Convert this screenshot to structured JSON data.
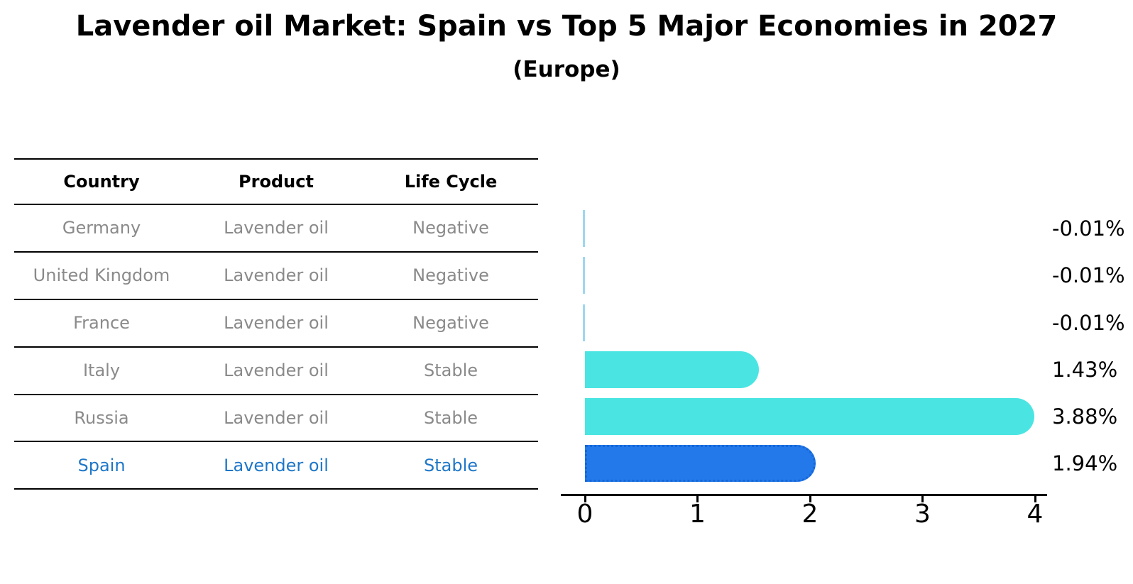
{
  "title": "Lavender oil Market: Spain vs Top 5 Major Economies in 2027",
  "subtitle": "(Europe)",
  "table": {
    "headers": [
      "Country",
      "Product",
      "Life Cycle"
    ],
    "rows": [
      {
        "country": "Germany",
        "product": "Lavender oil",
        "life_cycle": "Negative",
        "highlighted": false
      },
      {
        "country": "United Kingdom",
        "product": "Lavender oil",
        "life_cycle": "Negative",
        "highlighted": false
      },
      {
        "country": "France",
        "product": "Lavender oil",
        "life_cycle": "Negative",
        "highlighted": false
      },
      {
        "country": "Italy",
        "product": "Lavender oil",
        "life_cycle": "Stable",
        "highlighted": false
      },
      {
        "country": "Russia",
        "product": "Lavender oil",
        "life_cycle": "Stable",
        "highlighted": false
      },
      {
        "country": "Spain",
        "product": "Lavender oil",
        "life_cycle": "Stable",
        "highlighted": true
      }
    ]
  },
  "chart_data": {
    "type": "bar",
    "orientation": "horizontal",
    "title": "Lavender oil Market: Spain vs Top 5 Major Economies in 2027 (Europe)",
    "categories": [
      "Germany",
      "United Kingdom",
      "France",
      "Italy",
      "Russia",
      "Spain"
    ],
    "values": [
      -0.01,
      -0.01,
      -0.01,
      1.43,
      3.88,
      1.94
    ],
    "value_labels": [
      "-0.01%",
      "-0.01%",
      "-0.01%",
      "1.43%",
      "3.88%",
      "1.94%"
    ],
    "xticks": [
      "0",
      "1",
      "2",
      "3",
      "4"
    ],
    "xlim": [
      0,
      4
    ],
    "xlabel": "",
    "ylabel": "",
    "grid": false,
    "legend": false,
    "highlight_category": "Spain",
    "colors": {
      "bar_default": "#4ae5e2",
      "bar_highlight": "#2379ea",
      "bar_highlight_border": "#1566d8",
      "bar_negative_sliver": "#9ed7f2",
      "table_text": "#8a8a8a",
      "highlight_text": "#1e77c8",
      "axis": "#000000",
      "title_text": "#000000"
    }
  }
}
